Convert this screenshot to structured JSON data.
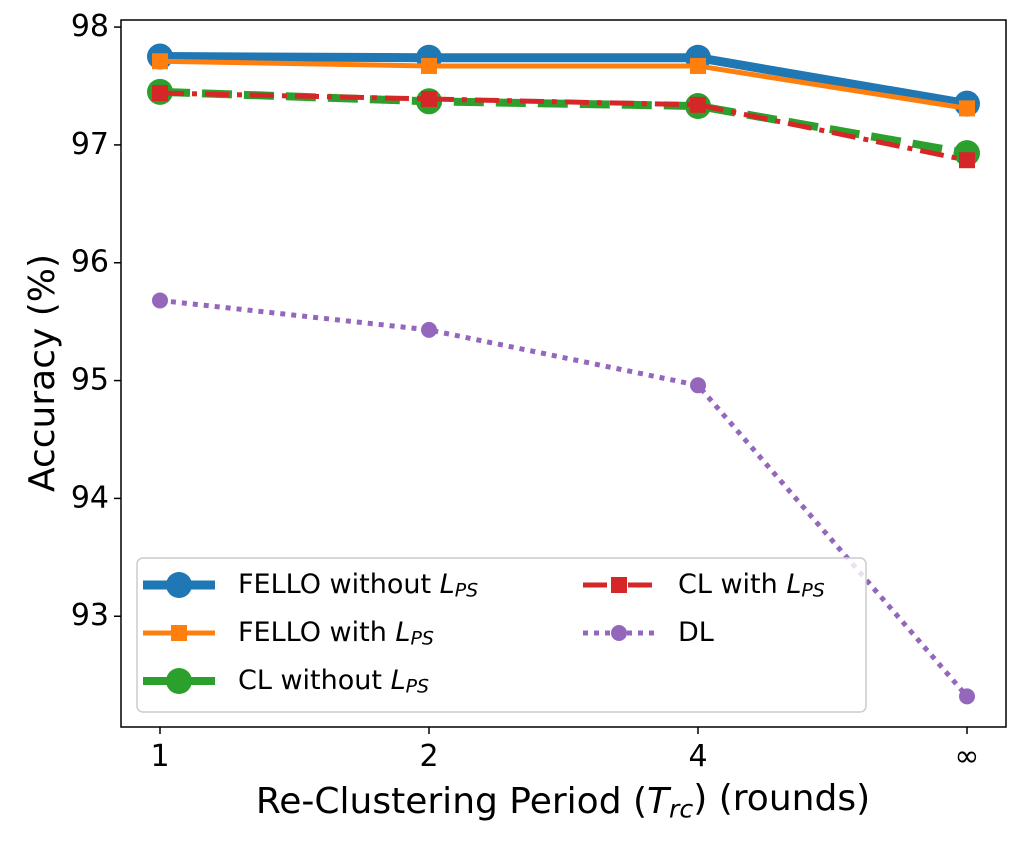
{
  "chart_data": {
    "type": "line",
    "x_label": "Re-Clustering Period (Trc) (rounds)",
    "y_label": "Accuracy (%)",
    "categories": [
      "1",
      "2",
      "4",
      "∞"
    ],
    "ylim": [
      92.06,
      98.06
    ],
    "yticks": [
      93,
      94,
      95,
      96,
      97,
      98
    ],
    "legend": "lower left",
    "series": [
      {
        "name": "FELLO without LPS",
        "color": "#1f77b4",
        "linestyle": "solid",
        "marker": "circle",
        "values": [
          97.75,
          97.74,
          97.74,
          97.35
        ]
      },
      {
        "name": "FELLO with LPS",
        "color": "#ff7f0e",
        "linestyle": "solid",
        "marker": "square",
        "values": [
          97.71,
          97.67,
          97.67,
          97.31
        ]
      },
      {
        "name": "CL without LPS",
        "color": "#2ca02c",
        "linestyle": "dashed",
        "marker": "circle",
        "values": [
          97.45,
          97.37,
          97.33,
          96.93
        ]
      },
      {
        "name": "CL with LPS",
        "color": "#d62728",
        "linestyle": "dashdot",
        "marker": "square",
        "values": [
          97.44,
          97.39,
          97.34,
          96.87
        ]
      },
      {
        "name": "DL",
        "color": "#9467bd",
        "linestyle": "dotted",
        "marker": "circle",
        "values": [
          95.68,
          95.43,
          94.96,
          92.32
        ]
      }
    ]
  }
}
